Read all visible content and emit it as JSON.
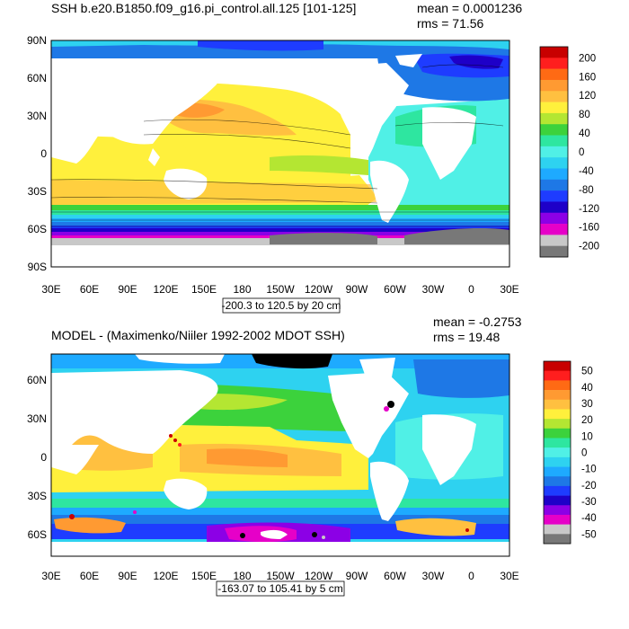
{
  "chart_data": [
    {
      "type": "heatmap",
      "title": "SSH b.e20.B1850.f09_g16.pi_control.all.125 [101-125]",
      "mean_label": "mean = 0.0001236",
      "rms_label": "rms = 71.56",
      "contour_info": "-200.3 to 120.5 by 20 cm",
      "x_ticks": [
        "30E",
        "60E",
        "90E",
        "120E",
        "150E",
        "180",
        "150W",
        "120W",
        "90W",
        "60W",
        "30W",
        "0",
        "30E"
      ],
      "y_ticks": [
        "90N",
        "60N",
        "30N",
        "0",
        "30S",
        "60S",
        "90S"
      ],
      "colorbar_levels": [
        "200",
        "160",
        "120",
        "80",
        "40",
        "0",
        "-40",
        "-80",
        "-120",
        "-160",
        "-200"
      ],
      "colorbar_colors": [
        "#c80000",
        "#ff1e1e",
        "#ff6a14",
        "#ff9a32",
        "#ffc040",
        "#fff03c",
        "#b4e632",
        "#3cd23c",
        "#2ee6a0",
        "#50f0e6",
        "#2ed2f0",
        "#1eaaff",
        "#1e78e6",
        "#1e3cff",
        "#1e00c8",
        "#8c00e6",
        "#e600c8",
        "#c8c8c8",
        "#787878"
      ]
    },
    {
      "type": "heatmap",
      "title": "MODEL - (Maximenko/Niiler 1992-2002 MDOT SSH)",
      "mean_label": "mean = -0.2753",
      "rms_label": "rms = 19.48",
      "contour_info": "-163.07 to 105.41 by 5 cm",
      "x_ticks": [
        "30E",
        "60E",
        "90E",
        "120E",
        "150E",
        "180",
        "150W",
        "120W",
        "90W",
        "60W",
        "30W",
        "0",
        "30E"
      ],
      "y_ticks": [
        "60N",
        "30N",
        "0",
        "30S",
        "60S"
      ],
      "colorbar_levels": [
        "50",
        "40",
        "30",
        "20",
        "10",
        "0",
        "-10",
        "-20",
        "-30",
        "-40",
        "-50"
      ],
      "colorbar_colors": [
        "#c80000",
        "#ff1e1e",
        "#ff6a14",
        "#ff9a32",
        "#ffc040",
        "#fff03c",
        "#b4e632",
        "#3cd23c",
        "#2ee6a0",
        "#50f0e6",
        "#2ed2f0",
        "#1eaaff",
        "#1e78e6",
        "#1e3cff",
        "#1e00c8",
        "#8c00e6",
        "#e600c8",
        "#c8c8c8",
        "#787878"
      ]
    }
  ]
}
